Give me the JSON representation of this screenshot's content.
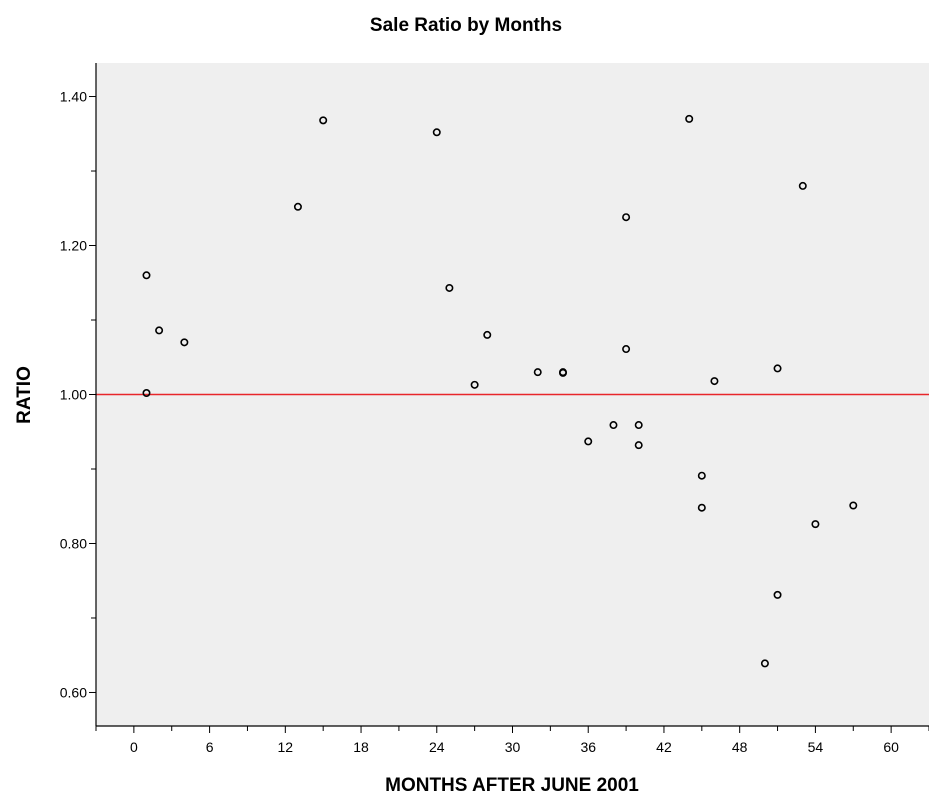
{
  "chart_data": {
    "type": "scatter",
    "title": "Sale Ratio by Months",
    "xlabel": "MONTHS AFTER JUNE 2001",
    "ylabel": "RATIO",
    "xlim": [
      -3,
      63
    ],
    "ylim": [
      0.555,
      1.445
    ],
    "x_ticks": [
      "0",
      "6",
      "12",
      "18",
      "24",
      "30",
      "36",
      "42",
      "48",
      "54",
      "60"
    ],
    "y_ticks": [
      "0.60",
      "0.80",
      "1.00",
      "1.20",
      "1.40"
    ],
    "reference_line": {
      "y": 1.0,
      "color": "#e8262a"
    },
    "grid": false,
    "plot_background": "#efefef",
    "marker": "open-circle",
    "points": [
      {
        "x": 1,
        "y": 1.16
      },
      {
        "x": 1,
        "y": 1.002
      },
      {
        "x": 2,
        "y": 1.086
      },
      {
        "x": 4,
        "y": 1.07
      },
      {
        "x": 13,
        "y": 1.252
      },
      {
        "x": 15,
        "y": 1.368
      },
      {
        "x": 24,
        "y": 1.352
      },
      {
        "x": 25,
        "y": 1.143
      },
      {
        "x": 27,
        "y": 1.013
      },
      {
        "x": 28,
        "y": 1.08
      },
      {
        "x": 32,
        "y": 1.03
      },
      {
        "x": 34,
        "y": 1.03
      },
      {
        "x": 34,
        "y": 1.029
      },
      {
        "x": 36,
        "y": 0.937
      },
      {
        "x": 38,
        "y": 0.959
      },
      {
        "x": 39,
        "y": 1.238
      },
      {
        "x": 39,
        "y": 1.061
      },
      {
        "x": 40,
        "y": 0.959
      },
      {
        "x": 40,
        "y": 0.932
      },
      {
        "x": 44,
        "y": 1.37
      },
      {
        "x": 45,
        "y": 0.891
      },
      {
        "x": 45,
        "y": 0.848
      },
      {
        "x": 46,
        "y": 1.018
      },
      {
        "x": 50,
        "y": 0.639
      },
      {
        "x": 51,
        "y": 1.035
      },
      {
        "x": 51,
        "y": 0.731
      },
      {
        "x": 53,
        "y": 1.28
      },
      {
        "x": 54,
        "y": 0.826
      },
      {
        "x": 57,
        "y": 0.851
      }
    ]
  }
}
